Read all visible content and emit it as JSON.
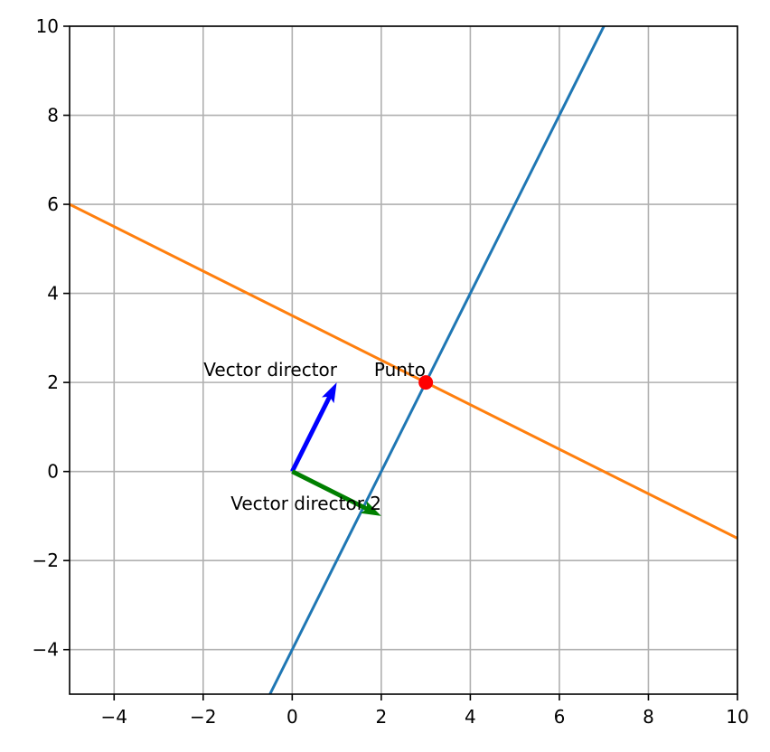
{
  "chart_data": {
    "type": "line",
    "title": "",
    "xlabel": "",
    "ylabel": "",
    "xlim": [
      -5,
      10
    ],
    "ylim": [
      -5,
      10
    ],
    "grid": true,
    "x_ticks": [
      -4,
      -2,
      0,
      2,
      4,
      6,
      8,
      10
    ],
    "y_ticks": [
      -4,
      -2,
      0,
      2,
      4,
      6,
      8,
      10
    ],
    "x_tick_labels": [
      "−4",
      "−2",
      "0",
      "2",
      "4",
      "6",
      "8",
      "10"
    ],
    "y_tick_labels": [
      "−4",
      "−2",
      "0",
      "2",
      "4",
      "6",
      "8",
      "10"
    ],
    "series": [
      {
        "type": "line",
        "color": "#1f77b4",
        "x": [
          -0.5,
          7
        ],
        "y": [
          -5,
          10
        ]
      },
      {
        "type": "line",
        "color": "#ff7f0e",
        "x": [
          -5,
          10
        ],
        "y": [
          6,
          -1.5
        ]
      }
    ],
    "points": [
      {
        "label": "Punto",
        "x": 3,
        "y": 2,
        "color": "#ff0000"
      }
    ],
    "vectors": [
      {
        "label": "Vector director",
        "origin": [
          0,
          0
        ],
        "components": [
          1,
          2
        ],
        "color": "#0000ff"
      },
      {
        "label": "Vector director 2",
        "origin": [
          0,
          0
        ],
        "components": [
          2,
          -1
        ],
        "color": "#008000"
      }
    ]
  }
}
